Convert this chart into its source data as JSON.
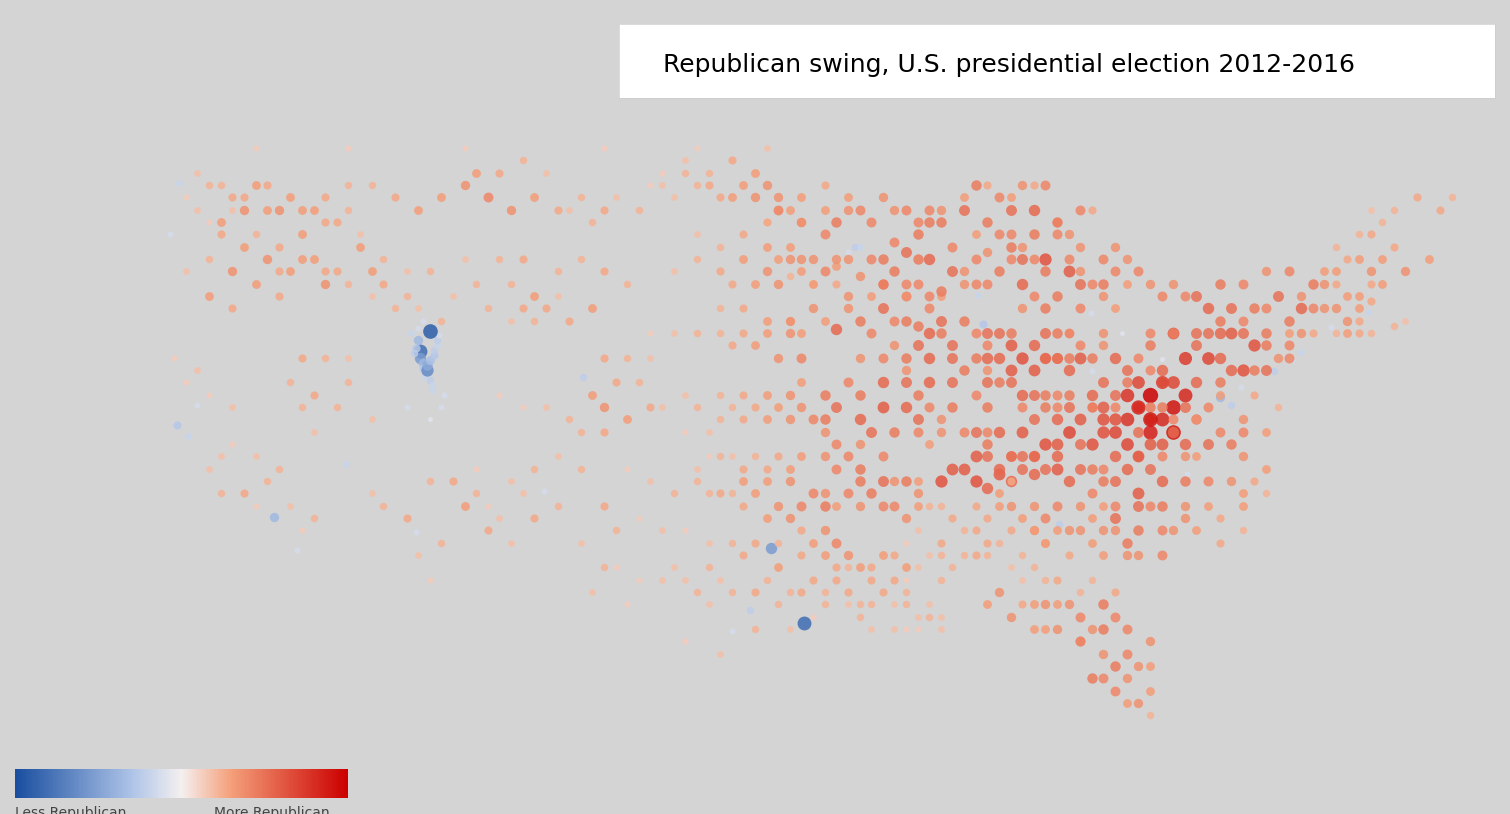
{
  "title": "Republican swing, U.S. presidential election 2012-2016",
  "title_fontsize": 18,
  "title_box_color": "#ffffff",
  "background_color": "#d4d4d4",
  "legend_label_less": "Less Republican",
  "legend_label_more": "More Republican",
  "map_background": "#e8e8e8",
  "red_color": "#cc0000",
  "blue_color": "#1a4fa0",
  "light_red": "#f4a07a",
  "light_blue": "#a0b8e0"
}
